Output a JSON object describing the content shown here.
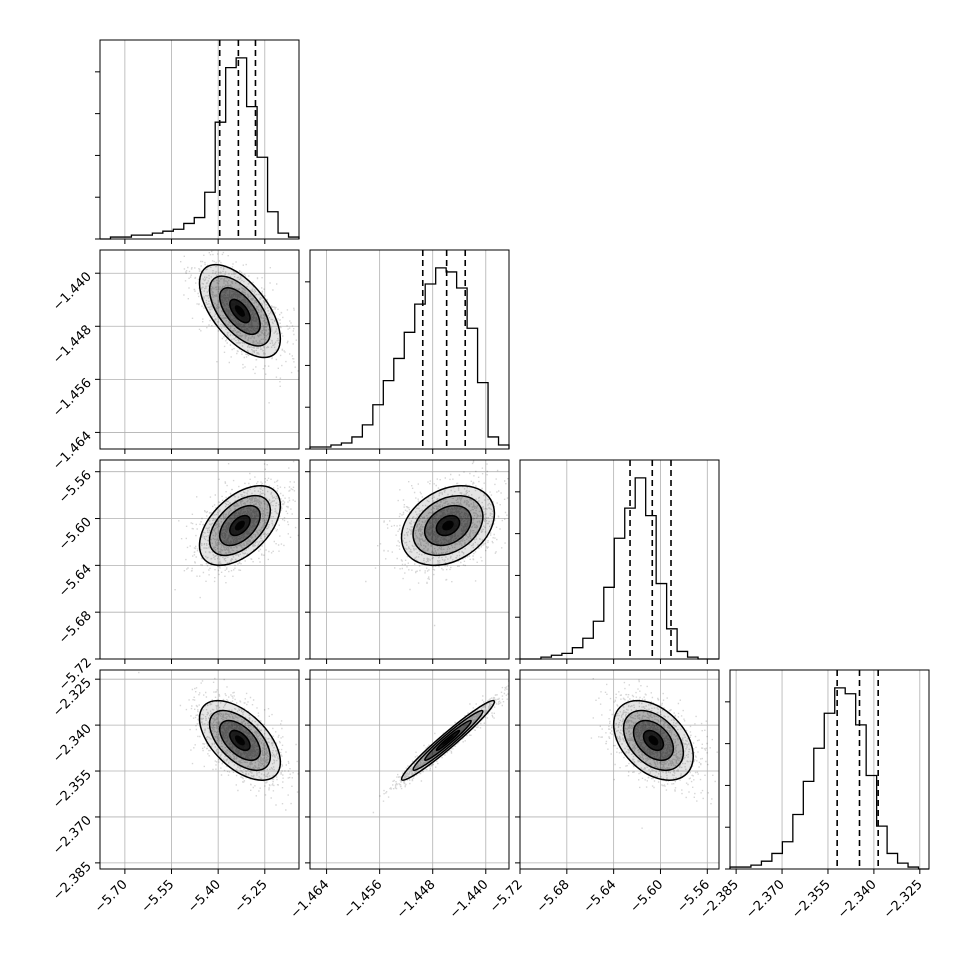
{
  "chart_data": {
    "type": "corner",
    "grid": true,
    "colors": {
      "frame": "#000000",
      "grid": "#b0b0b0",
      "scatter": "#000000",
      "contour": "#000000"
    },
    "params": [
      {
        "range": [
          -5.78,
          -5.14
        ],
        "ticks": [
          -5.7,
          -5.55,
          -5.4,
          -5.25
        ],
        "tick_labels": [
          "−5.70",
          "−5.55",
          "−5.40",
          "−5.25"
        ],
        "center": -5.33,
        "sd": 0.065,
        "quantiles": [
          -5.395,
          -5.335,
          -5.28
        ]
      },
      {
        "range": [
          -1.4665,
          -1.4365
        ],
        "ticks": [
          -1.464,
          -1.456,
          -1.448,
          -1.44
        ],
        "tick_labels": [
          "−1.464",
          "−1.456",
          "−1.448",
          "−1.440"
        ],
        "center": -1.4457,
        "sd": 0.0035,
        "quantiles": [
          -1.4495,
          -1.4459,
          -1.4431
        ]
      },
      {
        "range": [
          -5.72,
          -5.55
        ],
        "ticks": [
          -5.72,
          -5.68,
          -5.64,
          -5.6,
          -5.56
        ],
        "tick_labels": [
          "−5.72",
          "−5.68",
          "−5.64",
          "−5.60",
          "−5.56"
        ],
        "center": -5.606,
        "sd": 0.017,
        "quantiles": [
          -5.626,
          -5.607,
          -5.591
        ]
      },
      {
        "range": [
          -2.387,
          -2.322
        ],
        "ticks": [
          -2.385,
          -2.37,
          -2.355,
          -2.34,
          -2.325
        ],
        "tick_labels": [
          "−2.385",
          "−2.370",
          "−2.355",
          "−2.340",
          "−2.325"
        ],
        "center": -2.345,
        "sd": 0.0065,
        "quantiles": [
          -2.352,
          -2.3447,
          -2.3386
        ]
      }
    ],
    "histograms": [
      {
        "param": 0,
        "counts": [
          0,
          1,
          1,
          2,
          2,
          3,
          4,
          5,
          8,
          11,
          24,
          60,
          88,
          93,
          68,
          42,
          14,
          3,
          1
        ],
        "peak": 93
      },
      {
        "param": 1,
        "counts": [
          1,
          1,
          2,
          3,
          6,
          12,
          22,
          34,
          45,
          58,
          72,
          82,
          90,
          88,
          80,
          60,
          33,
          6,
          2
        ],
        "peak": 90
      },
      {
        "param": 2,
        "counts": [
          0,
          0,
          1,
          2,
          3,
          6,
          11,
          20,
          38,
          64,
          80,
          96,
          76,
          40,
          16,
          4,
          1,
          0,
          0
        ],
        "peak": 96
      },
      {
        "param": 3,
        "counts": [
          1,
          1,
          2,
          4,
          8,
          14,
          28,
          45,
          62,
          80,
          93,
          90,
          74,
          48,
          22,
          8,
          3,
          1,
          0
        ],
        "peak": 93
      }
    ],
    "pairs": [
      {
        "x": 0,
        "y": 1,
        "correlation": -0.6
      },
      {
        "x": 0,
        "y": 2,
        "correlation": 0.5
      },
      {
        "x": 1,
        "y": 2,
        "correlation": 0.3
      },
      {
        "x": 0,
        "y": 3,
        "correlation": -0.55
      },
      {
        "x": 1,
        "y": 3,
        "correlation": 0.97
      },
      {
        "x": 2,
        "y": 3,
        "correlation": -0.4
      }
    ],
    "contour_levels_sigma": [
      0.5,
      1.0,
      1.5,
      2.0
    ]
  }
}
